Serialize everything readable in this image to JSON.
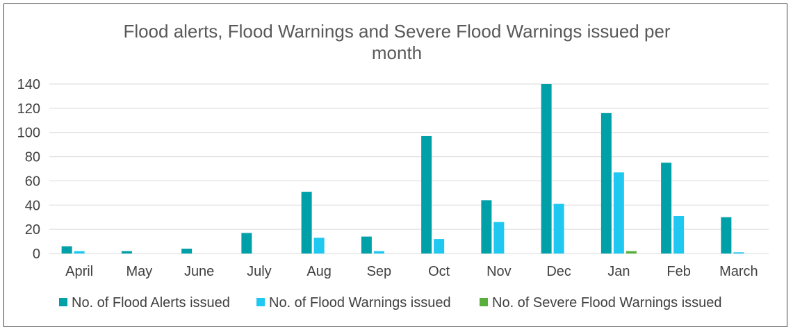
{
  "chart_data": {
    "type": "bar",
    "title_lines": [
      "Flood alerts, Flood Warnings and Severe Flood Warnings issued per",
      "month"
    ],
    "categories": [
      "April",
      "May",
      "June",
      "July",
      "Aug",
      "Sep",
      "Oct",
      "Nov",
      "Dec",
      "Jan",
      "Feb",
      "March"
    ],
    "series": [
      {
        "name": "No. of Flood Alerts issued",
        "color": "#00A0A8",
        "values": [
          6,
          2,
          4,
          17,
          51,
          14,
          97,
          44,
          140,
          116,
          75,
          30
        ]
      },
      {
        "name": "No. of Flood Warnings issued",
        "color": "#1FC8F0",
        "values": [
          2,
          0,
          0,
          0,
          13,
          2,
          12,
          26,
          41,
          67,
          31,
          1
        ]
      },
      {
        "name": "No. of Severe Flood Warnings issued",
        "color": "#5AAE3C",
        "values": [
          0,
          0,
          0,
          0,
          0,
          0,
          0,
          0,
          0,
          2,
          0,
          0
        ]
      }
    ],
    "yticks": [
      "0",
      "20",
      "40",
      "60",
      "80",
      "100",
      "120",
      "140"
    ],
    "ylim": [
      0,
      140
    ],
    "xlabel": "",
    "ylabel": "",
    "grid": true,
    "legend_position": "bottom"
  }
}
